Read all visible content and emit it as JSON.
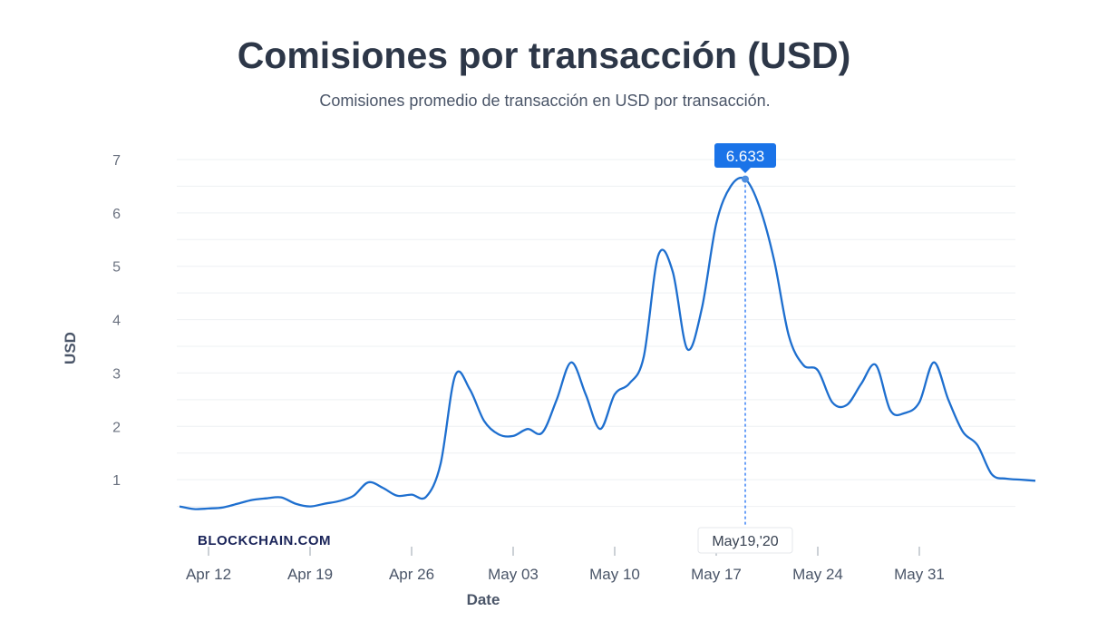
{
  "chart_data": {
    "type": "line",
    "title": "Comisiones por transacción (USD)",
    "subtitle": "Comisiones promedio de transacción en USD por transacción.",
    "xlabel": "Date",
    "ylabel": "USD",
    "ylim": [
      0,
      7
    ],
    "y_ticks": [
      1,
      2,
      3,
      4,
      5,
      6,
      7
    ],
    "x_ticks": [
      "Apr 12",
      "Apr 19",
      "Apr 26",
      "May 03",
      "May 10",
      "May 17",
      "May 24",
      "May 31"
    ],
    "grid": true,
    "watermark": "BLOCKCHAIN.COM",
    "series": [
      {
        "color": "#1e6fcf",
        "x": [
          "2020-04-10",
          "2020-04-11",
          "2020-04-12",
          "2020-04-13",
          "2020-04-14",
          "2020-04-15",
          "2020-04-16",
          "2020-04-17",
          "2020-04-18",
          "2020-04-19",
          "2020-04-20",
          "2020-04-21",
          "2020-04-22",
          "2020-04-23",
          "2020-04-24",
          "2020-04-25",
          "2020-04-26",
          "2020-04-27",
          "2020-04-28",
          "2020-04-29",
          "2020-04-30",
          "2020-05-01",
          "2020-05-02",
          "2020-05-03",
          "2020-05-04",
          "2020-05-05",
          "2020-05-06",
          "2020-05-07",
          "2020-05-08",
          "2020-05-09",
          "2020-05-10",
          "2020-05-11",
          "2020-05-12",
          "2020-05-13",
          "2020-05-14",
          "2020-05-15",
          "2020-05-16",
          "2020-05-17",
          "2020-05-18",
          "2020-05-19",
          "2020-05-20",
          "2020-05-21",
          "2020-05-22",
          "2020-05-23",
          "2020-05-24",
          "2020-05-25",
          "2020-05-26",
          "2020-05-27",
          "2020-05-28",
          "2020-05-29",
          "2020-05-30",
          "2020-05-31",
          "2020-06-01",
          "2020-06-02",
          "2020-06-03",
          "2020-06-04",
          "2020-06-05",
          "2020-06-06",
          "2020-06-07",
          "2020-06-08"
        ],
        "y": [
          0.5,
          0.45,
          0.46,
          0.48,
          0.55,
          0.62,
          0.65,
          0.67,
          0.55,
          0.5,
          0.55,
          0.6,
          0.7,
          0.95,
          0.85,
          0.7,
          0.72,
          0.68,
          1.3,
          2.95,
          2.7,
          2.1,
          1.85,
          1.82,
          1.95,
          1.88,
          2.5,
          3.2,
          2.6,
          1.95,
          2.6,
          2.8,
          3.3,
          5.2,
          4.9,
          3.45,
          4.2,
          5.8,
          6.5,
          6.633,
          6.1,
          5.1,
          3.7,
          3.15,
          3.05,
          2.45,
          2.4,
          2.8,
          3.15,
          2.3,
          2.25,
          2.45,
          3.2,
          2.5,
          1.9,
          1.65,
          1.1,
          1.02,
          1.0,
          0.98
        ]
      }
    ],
    "tooltip": {
      "value": "6.633",
      "date": "May19,'20"
    }
  }
}
